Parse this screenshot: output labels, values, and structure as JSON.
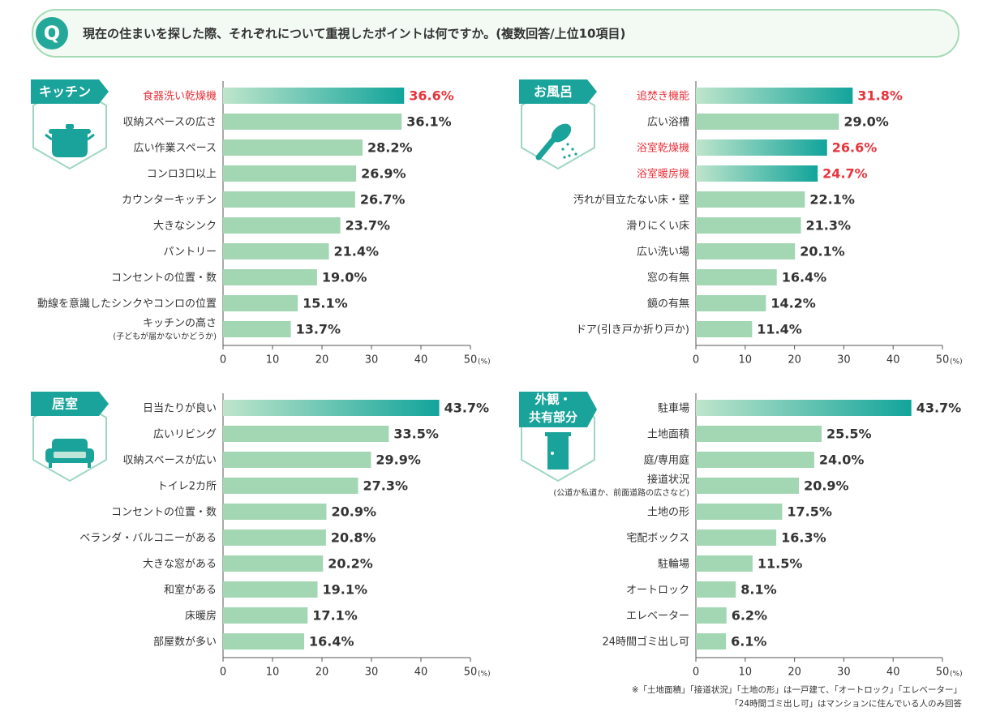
{
  "header": {
    "mark": "Q",
    "text": "現在の住まいを探した際、それぞれについて重視したポイントは何ですか。(複数回答/上位10項目)"
  },
  "chart_data": [
    {
      "type": "bar",
      "orientation": "horizontal",
      "title": "キッチン",
      "unit": "(%)",
      "categories": [
        "食器洗い乾燥機",
        "収納スペースの広さ",
        "広い作業スペース",
        "コンロ3口以上",
        "カウンターキッチン",
        "大きなシンク",
        "パントリー",
        "コンセントの位置・数",
        "動線を意識したシンクやコンロの位置",
        [
          "キッチンの高さ",
          "(子どもが届かないかどうか)"
        ]
      ],
      "values": [
        36.6,
        36.1,
        28.2,
        26.9,
        26.7,
        23.7,
        21.4,
        19.0,
        15.1,
        13.7
      ],
      "value_labels": [
        "36.6%",
        "36.1%",
        "28.2%",
        "26.9%",
        "26.7%",
        "23.7%",
        "21.4%",
        "19.0%",
        "15.1%",
        "13.7%"
      ],
      "highlight": [
        true,
        false,
        false,
        false,
        false,
        false,
        false,
        false,
        false,
        false
      ],
      "highlight_labels": true,
      "color": "#a3d6b3",
      "highlight_color": "#12a49b",
      "label_highlight_color": "#e8343c",
      "xlim": [
        0,
        50
      ],
      "xticks": [
        0,
        10,
        20,
        30,
        40,
        50
      ]
    },
    {
      "type": "bar",
      "orientation": "horizontal",
      "title": "お風呂",
      "unit": "(%)",
      "categories": [
        "追焚き機能",
        "広い浴槽",
        "浴室乾燥機",
        "浴室暖房機",
        "汚れが目立たない床・壁",
        "滑りにくい床",
        "広い洗い場",
        "窓の有無",
        "鏡の有無",
        "ドア(引き戸か折り戸か)"
      ],
      "values": [
        31.8,
        29.0,
        26.6,
        24.7,
        22.1,
        21.3,
        20.1,
        16.4,
        14.2,
        11.4
      ],
      "value_labels": [
        "31.8%",
        "29.0%",
        "26.6%",
        "24.7%",
        "22.1%",
        "21.3%",
        "20.1%",
        "16.4%",
        "14.2%",
        "11.4%"
      ],
      "highlight": [
        true,
        false,
        true,
        true,
        false,
        false,
        false,
        false,
        false,
        false
      ],
      "highlight_labels": true,
      "color": "#a3d6b3",
      "highlight_color": "#12a49b",
      "label_highlight_color": "#e8343c",
      "xlim": [
        0,
        50
      ],
      "xticks": [
        0,
        10,
        20,
        30,
        40,
        50
      ]
    },
    {
      "type": "bar",
      "orientation": "horizontal",
      "title": "居室",
      "unit": "(%)",
      "categories": [
        "日当たりが良い",
        "広いリビング",
        "収納スペースが広い",
        "トイレ2カ所",
        "コンセントの位置・数",
        "ベランダ・バルコニーがある",
        "大きな窓がある",
        "和室がある",
        "床暖房",
        "部屋数が多い"
      ],
      "values": [
        43.7,
        33.5,
        29.9,
        27.3,
        20.9,
        20.8,
        20.2,
        19.1,
        17.1,
        16.4
      ],
      "value_labels": [
        "43.7%",
        "33.5%",
        "29.9%",
        "27.3%",
        "20.9%",
        "20.8%",
        "20.2%",
        "19.1%",
        "17.1%",
        "16.4%"
      ],
      "highlight": [
        true,
        false,
        false,
        false,
        false,
        false,
        false,
        false,
        false,
        false
      ],
      "highlight_labels": false,
      "color": "#a3d6b3",
      "highlight_color": "#12a49b",
      "label_highlight_color": "#e8343c",
      "xlim": [
        0,
        50
      ],
      "xticks": [
        0,
        10,
        20,
        30,
        40,
        50
      ]
    },
    {
      "type": "bar",
      "orientation": "horizontal",
      "title": [
        "外観・",
        "共有部分"
      ],
      "unit": "(%)",
      "categories": [
        "駐車場",
        "土地面積",
        "庭/専用庭",
        [
          "接道状況",
          "(公道か私道か、前面道路の広さなど)"
        ],
        "土地の形",
        "宅配ボックス",
        "駐輪場",
        "オートロック",
        "エレベーター",
        "24時間ゴミ出し可"
      ],
      "values": [
        43.7,
        25.5,
        24.0,
        20.9,
        17.5,
        16.3,
        11.5,
        8.1,
        6.2,
        6.1
      ],
      "value_labels": [
        "43.7%",
        "25.5%",
        "24.0%",
        "20.9%",
        "17.5%",
        "16.3%",
        "11.5%",
        "8.1%",
        "6.2%",
        "6.1%"
      ],
      "highlight": [
        true,
        false,
        false,
        false,
        false,
        false,
        false,
        false,
        false,
        false
      ],
      "highlight_labels": false,
      "color": "#a3d6b3",
      "highlight_color": "#12a49b",
      "label_highlight_color": "#e8343c",
      "xlim": [
        0,
        50
      ],
      "xticks": [
        0,
        10,
        20,
        30,
        40,
        50
      ],
      "footnote": [
        "※「土地面積」「接道状況」「土地の形」は一戸建て、「オートロック」「エレベーター」",
        "「24時間ゴミ出し可」はマンションに住んでいる人のみ回答"
      ]
    }
  ]
}
